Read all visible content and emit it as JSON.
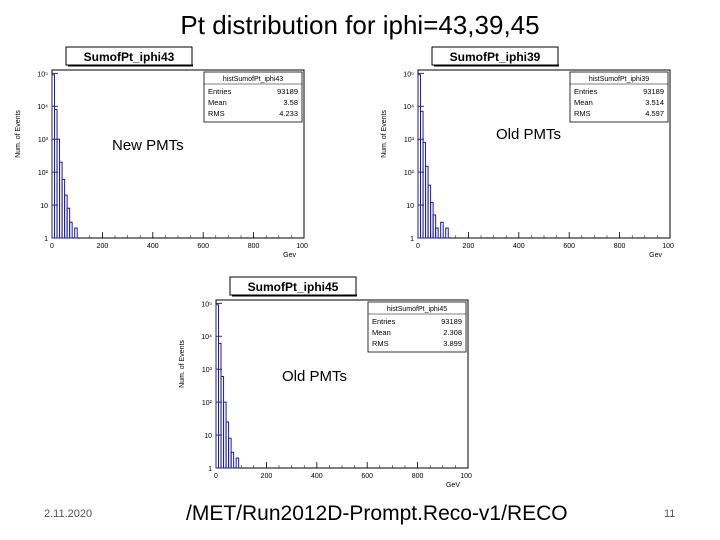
{
  "slide": {
    "title": "Pt distribution for iphi=43,39,45",
    "date": "2.11.2020",
    "footer": "/MET/Run2012D-Prompt.Reco-v1/RECO",
    "number": "11"
  },
  "chart_data": [
    {
      "type": "histogram",
      "title": "SumofPt_iphi43",
      "xlabel": "Gev",
      "ylabel": "Num. of Events",
      "xlim": [
        0,
        1000
      ],
      "ylog": true,
      "xticks": [
        "0",
        "200",
        "400",
        "600",
        "800",
        "1000"
      ],
      "yticks": [
        "1",
        "10",
        "10²",
        "10³",
        "10⁴",
        "10⁵"
      ],
      "annotation": "New PMTs",
      "stats": {
        "name": "histSumofPt_iphi43",
        "Entries": "93189",
        "Mean": "3.58",
        "RMS": "4.233"
      },
      "bins": [
        [
          0,
          10,
          90000
        ],
        [
          10,
          20,
          8000
        ],
        [
          20,
          30,
          1000
        ],
        [
          30,
          40,
          200
        ],
        [
          40,
          50,
          60
        ],
        [
          50,
          60,
          20
        ],
        [
          60,
          70,
          8
        ],
        [
          70,
          80,
          3
        ],
        [
          80,
          90,
          1
        ],
        [
          90,
          100,
          2
        ],
        [
          100,
          110,
          1
        ],
        [
          120,
          130,
          1
        ],
        [
          140,
          150,
          1
        ]
      ]
    },
    {
      "type": "histogram",
      "title": "SumofPt_iphi39",
      "xlabel": "Gev",
      "ylabel": "Num. of Events",
      "xlim": [
        0,
        1000
      ],
      "ylog": true,
      "xticks": [
        "0",
        "200",
        "400",
        "600",
        "800",
        "1000"
      ],
      "yticks": [
        "1",
        "10",
        "10²",
        "10³",
        "10⁴",
        "10⁵"
      ],
      "annotation": "Old PMTs",
      "stats": {
        "name": "histSumofPt_iphi39",
        "Entries": "93189",
        "Mean": "3.514",
        "RMS": "4.597"
      },
      "bins": [
        [
          0,
          10,
          90000
        ],
        [
          10,
          20,
          7000
        ],
        [
          20,
          30,
          800
        ],
        [
          30,
          40,
          150
        ],
        [
          40,
          50,
          40
        ],
        [
          50,
          60,
          12
        ],
        [
          60,
          70,
          5
        ],
        [
          70,
          80,
          2
        ],
        [
          80,
          90,
          1
        ],
        [
          90,
          100,
          3
        ],
        [
          100,
          110,
          1
        ],
        [
          110,
          120,
          2
        ],
        [
          130,
          140,
          1
        ],
        [
          150,
          160,
          1
        ],
        [
          170,
          180,
          1
        ],
        [
          190,
          200,
          1
        ],
        [
          220,
          230,
          1
        ],
        [
          260,
          270,
          1
        ],
        [
          420,
          430,
          1
        ],
        [
          600,
          610,
          1
        ],
        [
          880,
          890,
          1
        ]
      ]
    },
    {
      "type": "histogram",
      "title": "SumofPt_iphi45",
      "xlabel": "GeV",
      "ylabel": "Num. of Events",
      "xlim": [
        0,
        1000
      ],
      "ylog": true,
      "xticks": [
        "0",
        "200",
        "400",
        "600",
        "800",
        "1000"
      ],
      "yticks": [
        "1",
        "10",
        "10²",
        "10³",
        "10⁴",
        "10⁵"
      ],
      "annotation": "Old PMTs",
      "stats": {
        "name": "histSumofPt_iphi45",
        "Entries": "93189",
        "Mean": "2.308",
        "RMS": "3.899"
      },
      "bins": [
        [
          0,
          10,
          90000
        ],
        [
          10,
          20,
          6000
        ],
        [
          20,
          30,
          600
        ],
        [
          30,
          40,
          100
        ],
        [
          40,
          50,
          25
        ],
        [
          50,
          60,
          8
        ],
        [
          60,
          70,
          3
        ],
        [
          70,
          80,
          1
        ],
        [
          80,
          90,
          2
        ],
        [
          90,
          100,
          1
        ],
        [
          110,
          120,
          1
        ],
        [
          130,
          140,
          1
        ],
        [
          160,
          170,
          1
        ],
        [
          200,
          210,
          1
        ],
        [
          250,
          260,
          1
        ]
      ]
    }
  ]
}
